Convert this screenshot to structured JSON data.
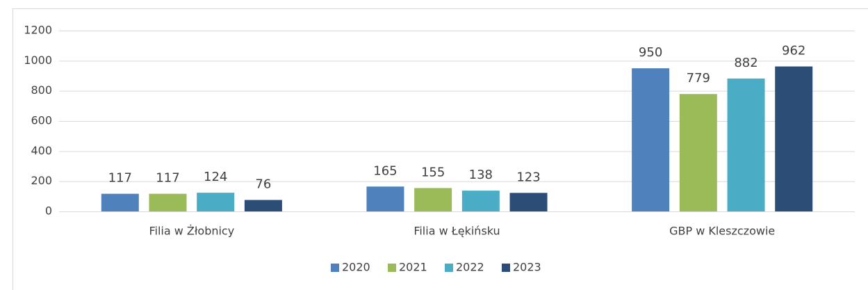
{
  "chart_data": {
    "type": "bar",
    "categories": [
      "Filia w Żłobnicy",
      "Filia w Łękińsku",
      "GBP w Kleszczowie"
    ],
    "series": [
      {
        "name": "2020",
        "color": "#4f81bd",
        "values": [
          117,
          165,
          950
        ]
      },
      {
        "name": "2021",
        "color": "#9bbb59",
        "values": [
          117,
          155,
          779
        ]
      },
      {
        "name": "2022",
        "color": "#4bacc6",
        "values": [
          124,
          138,
          882
        ]
      },
      {
        "name": "2023",
        "color": "#2c4d75",
        "values": [
          76,
          123,
          962
        ]
      }
    ],
    "ylim": [
      0,
      1200
    ],
    "yticks": [
      0,
      200,
      400,
      600,
      800,
      1000,
      1200
    ],
    "grid": true,
    "legend": "bottom"
  }
}
